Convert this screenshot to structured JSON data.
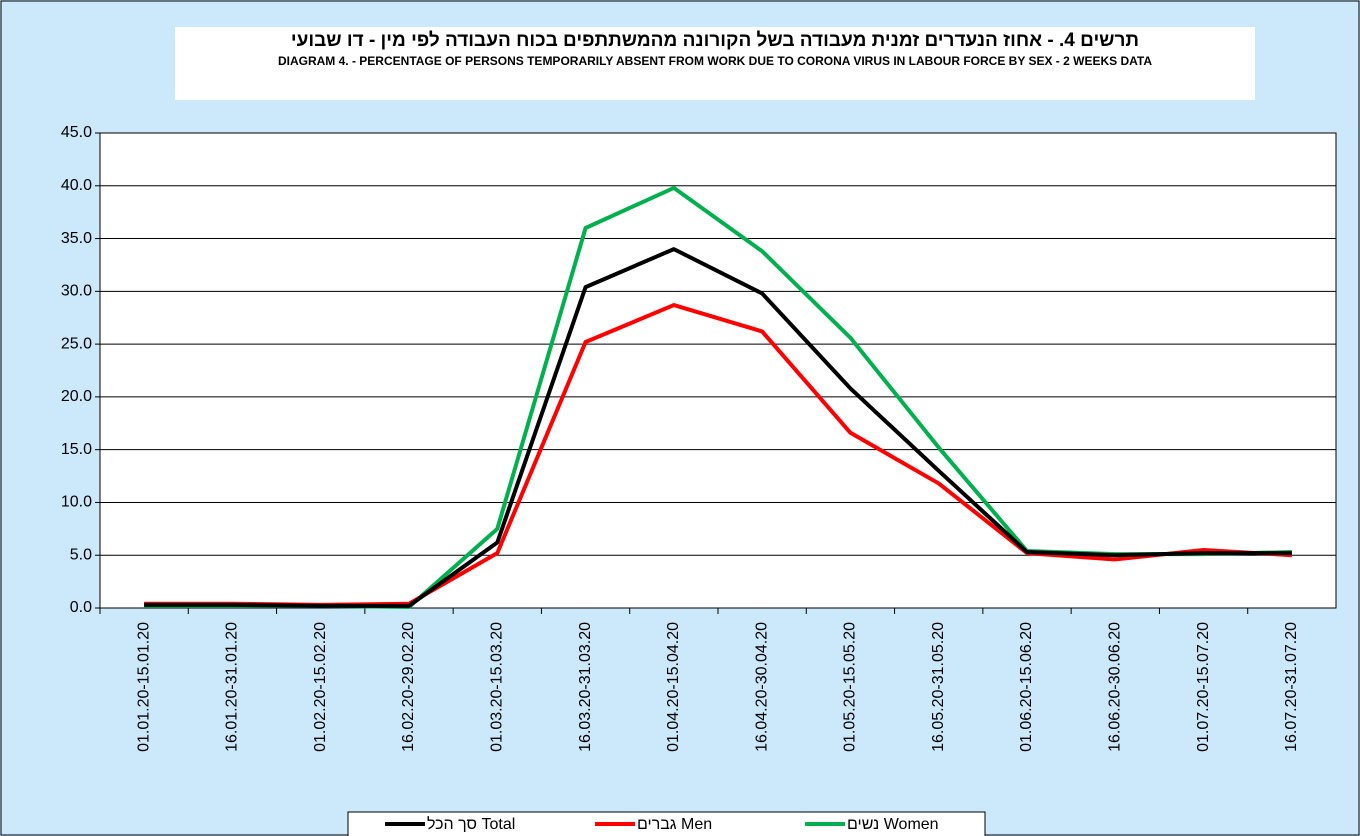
{
  "chart_data": {
    "type": "line",
    "title": "תרשים 4. - אחוז הנעדרים זמנית מעבודה בשל הקורונה מהמשתתפים בכוח העבודה לפי מין - דו שבועי",
    "subtitle": "DIAGRAM 4. - PERCENTAGE OF PERSONS TEMPORARILY ABSENT FROM WORK DUE TO CORONA VIRUS IN LABOUR FORCE BY SEX - 2 WEEKS DATA",
    "categories": [
      "01.01.20-15.01.20",
      "16.01.20-31.01.20",
      "01.02.20-15.02.20",
      "16.02.20-29.02.20",
      "01.03.20-15.03.20",
      "16.03.20-31.03.20",
      "01.04.20-15.04.20",
      "16.04.20-30.04.20",
      "01.05.20-15.05.20",
      "16.05.20-31.05.20",
      "01.06.20-15.06.20",
      "16.06.20-30.06.20",
      "01.07.20-15.07.20",
      "16.07.20-31.07.20"
    ],
    "series": [
      {
        "name": "סך הכל Total",
        "color": "#000000",
        "values": [
          0.3,
          0.3,
          0.2,
          0.2,
          6.2,
          30.4,
          34.0,
          29.8,
          20.8,
          13.0,
          5.3,
          5.0,
          5.2,
          5.2
        ]
      },
      {
        "name": "גברים Men",
        "color": "#ff0000",
        "values": [
          0.4,
          0.4,
          0.3,
          0.4,
          5.2,
          25.2,
          28.7,
          26.2,
          16.6,
          11.8,
          5.2,
          4.6,
          5.5,
          5.0
        ]
      },
      {
        "name": "נשים Women",
        "color": "#00b050",
        "values": [
          0.2,
          0.2,
          0.2,
          0.1,
          7.5,
          36.0,
          39.8,
          33.8,
          25.6,
          15.2,
          5.4,
          5.1,
          5.1,
          5.3
        ]
      }
    ],
    "ylim": [
      0,
      45
    ],
    "yticks": [
      {
        "value": 0,
        "label": "0.0"
      },
      {
        "value": 5,
        "label": "5.0"
      },
      {
        "value": 10,
        "label": "10.0"
      },
      {
        "value": 15,
        "label": "15.0"
      },
      {
        "value": 20,
        "label": "20.0"
      },
      {
        "value": 25,
        "label": "25.0"
      },
      {
        "value": 30,
        "label": "30.0"
      },
      {
        "value": 35,
        "label": "35.0"
      },
      {
        "value": 40,
        "label": "40.0"
      },
      {
        "value": 45,
        "label": "45.0"
      }
    ],
    "grid": true
  }
}
